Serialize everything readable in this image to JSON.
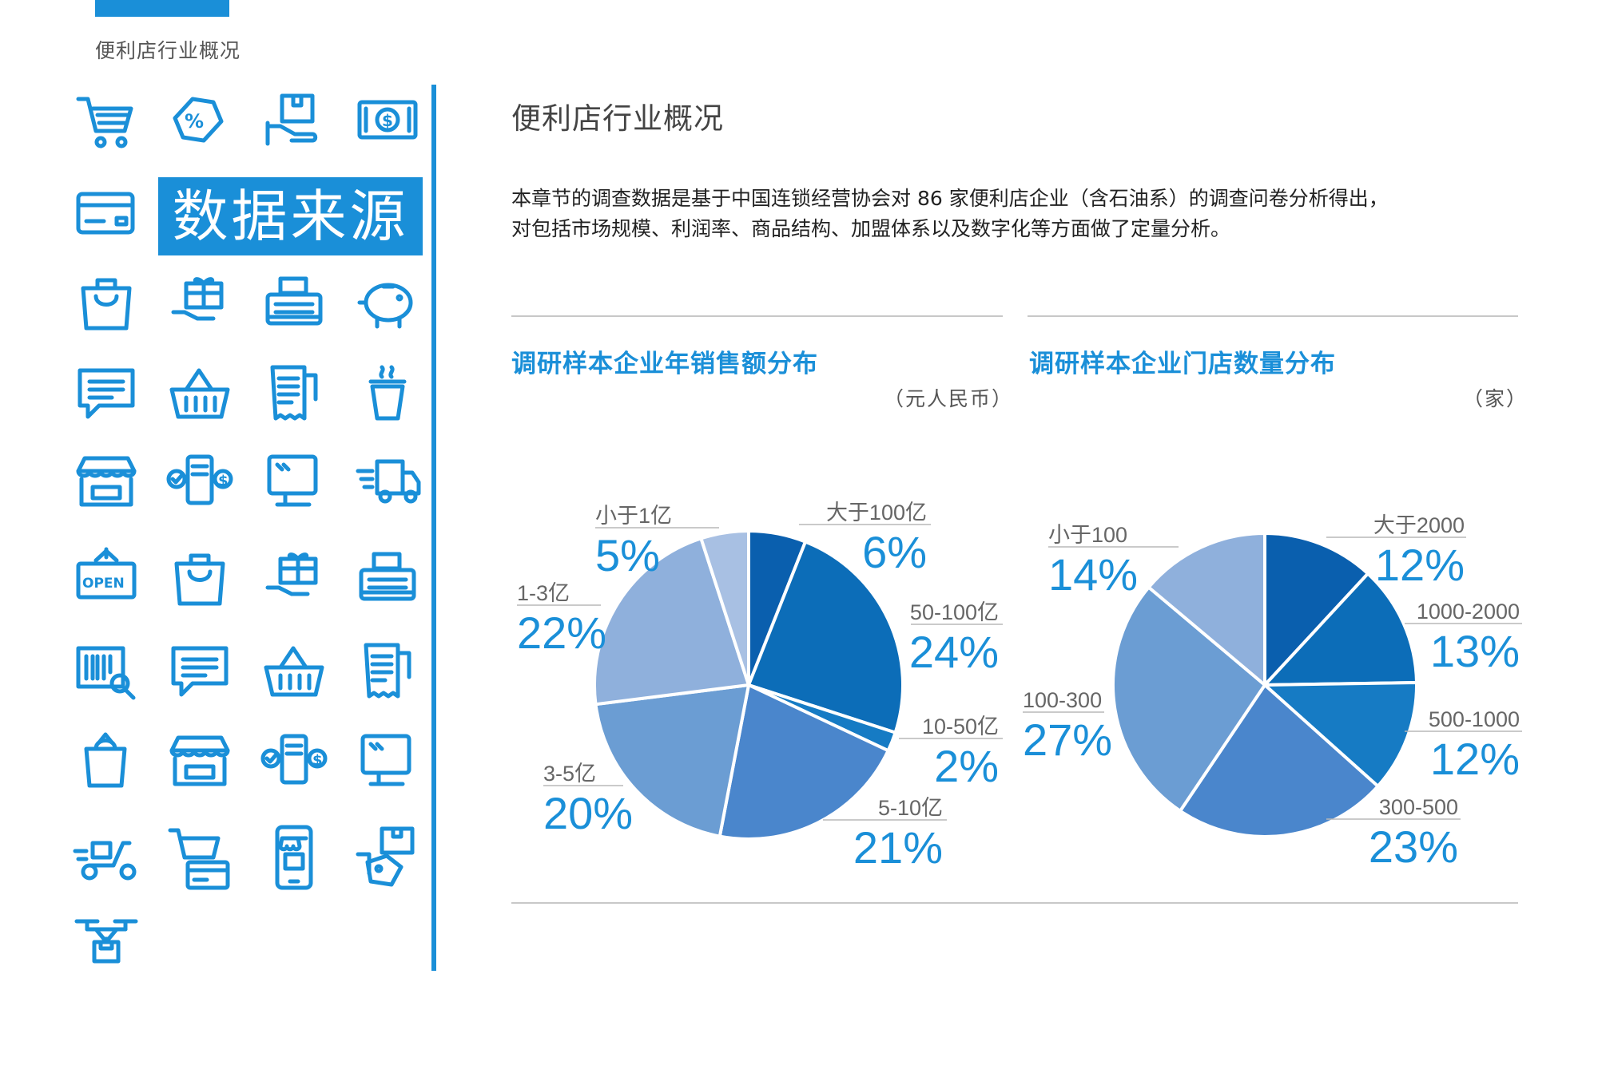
{
  "header": {
    "section_label": "便利店行业概况"
  },
  "sidebar": {
    "source_title": "数据来源",
    "icons": [
      "shopping-cart-icon",
      "discount-tag-icon",
      "package-hand-icon",
      "money-bill-icon",
      "credit-card-icon",
      "shopping-bag-icon",
      "gift-hand-icon",
      "cash-register-icon",
      "piggy-bank-icon",
      "chat-message-icon",
      "shopping-basket-icon",
      "receipt-icon",
      "hot-drink-icon",
      "storefront-icon",
      "card-payment-icon",
      "pos-terminal-icon",
      "delivery-truck-icon",
      "open-sign-icon",
      "shopping-bag-icon",
      "gift-hand-icon",
      "cash-register-icon",
      "barcode-scan-icon",
      "chat-message-icon",
      "shopping-basket-icon",
      "receipt-icon",
      "grocery-bag-icon",
      "storefront-icon",
      "card-payment-icon",
      "pos-terminal-icon",
      "delivery-scooter-icon",
      "cart-card-icon",
      "mobile-shop-icon",
      "price-tag-hand-icon",
      "delivery-drone-icon"
    ]
  },
  "main": {
    "title": "便利店行业概况",
    "intro_lines": [
      "本章节的调查数据是基于中国连锁经营协会对 86 家便利店企业（含石油系）的调查问卷分析得出，",
      "对包括市场规模、利润率、商品结构、加盟体系以及数字化等方面做了定量分析。"
    ]
  },
  "colors": {
    "accent": "#1a8fd8",
    "slice_palette": [
      "#0a5fae",
      "#0c6db8",
      "#167bc4",
      "#4a86cc",
      "#6b9dd3",
      "#8fb0dc",
      "#a8c0e3"
    ]
  },
  "chart_data": [
    {
      "type": "pie",
      "title": "调研样本企业年销售额分布",
      "unit": "（元人民币）",
      "slices": [
        {
          "label": "大于100亿",
          "value": 6,
          "display": "6%"
        },
        {
          "label": "50-100亿",
          "value": 24,
          "display": "24%"
        },
        {
          "label": "10-50亿",
          "value": 2,
          "display": "2%"
        },
        {
          "label": "5-10亿",
          "value": 21,
          "display": "21%"
        },
        {
          "label": "3-5亿",
          "value": 20,
          "display": "20%"
        },
        {
          "label": "1-3亿",
          "value": 22,
          "display": "22%"
        },
        {
          "label": "小于1亿",
          "value": 5,
          "display": "5%"
        }
      ]
    },
    {
      "type": "pie",
      "title": "调研样本企业门店数量分布",
      "unit": "（家）",
      "slices": [
        {
          "label": "大于2000",
          "value": 12,
          "display": "12%"
        },
        {
          "label": "1000-2000",
          "value": 13,
          "display": "13%"
        },
        {
          "label": "500-1000",
          "value": 12,
          "display": "12%"
        },
        {
          "label": "300-500",
          "value": 23,
          "display": "23%"
        },
        {
          "label": "100-300",
          "value": 27,
          "display": "27%"
        },
        {
          "label": "小于100",
          "value": 14,
          "display": "14%"
        }
      ]
    }
  ]
}
